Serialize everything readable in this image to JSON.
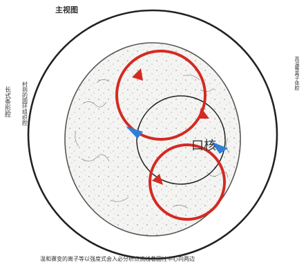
{
  "title": "主视图",
  "center_label": "口核",
  "left_label_outer": "长式条形腔",
  "left_label_inner": "村则的圆环组织腔",
  "right_label": "高温等离子体腔",
  "caption": "温和骤变的离子等以强度式会入必分析点流线着圆柱中心向两边",
  "colors": {
    "background": "#ffffff",
    "outline": "#222222",
    "cavity_fill": "#f4f4f2",
    "loop_red": "#d42a22",
    "arrow_blue": "#2f7fd8"
  }
}
